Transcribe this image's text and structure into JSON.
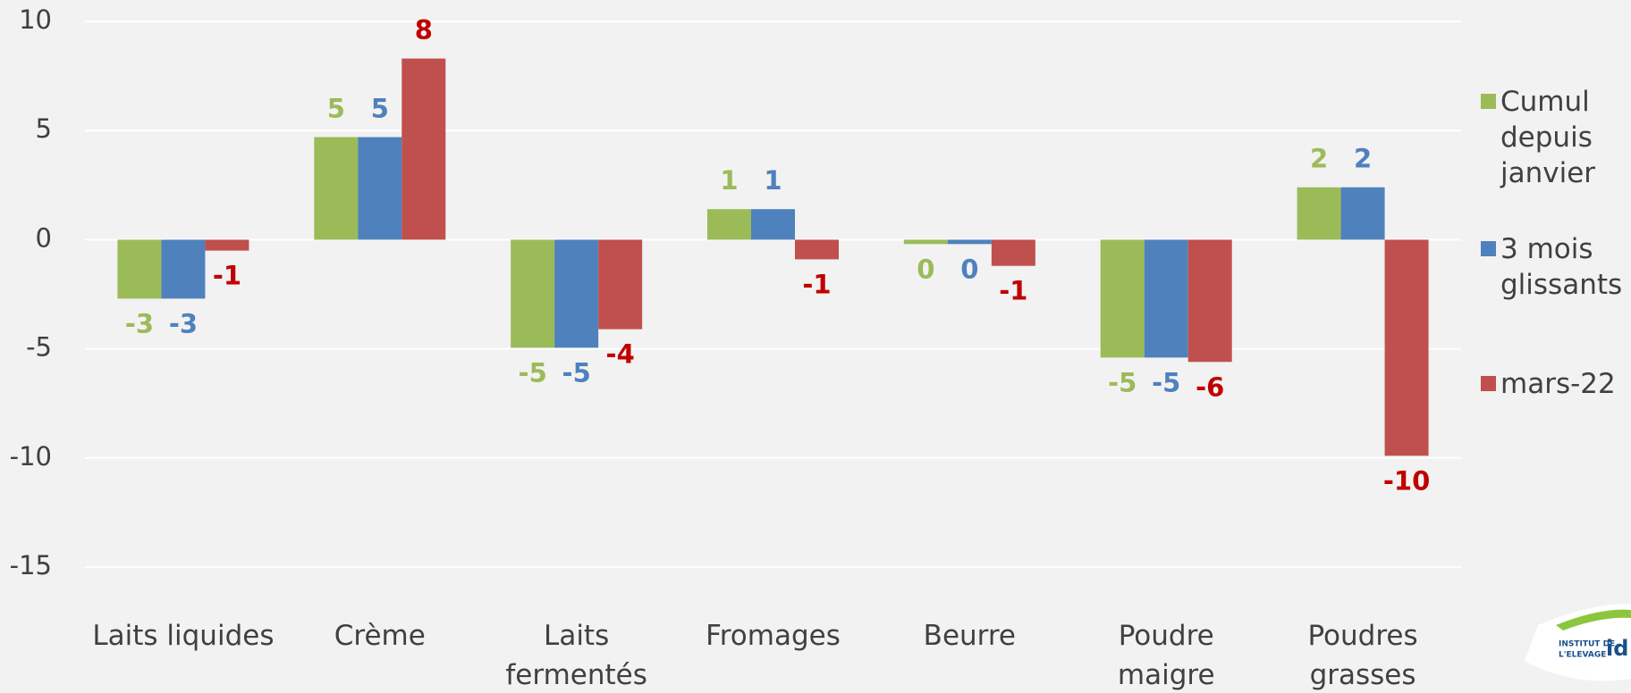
{
  "chart_data": {
    "type": "bar",
    "categories": [
      "Laits liquides",
      "Crème",
      "Laits\nfermentés",
      "Fromages",
      "Beurre",
      "Poudre\nmaigre",
      "Poudres\ngrasses"
    ],
    "series": [
      {
        "name": "Cumul\ndepuis\njanvier",
        "color": "#9bbb59",
        "label_color": "#9bbb59",
        "values": [
          -2.7,
          4.7,
          -4.95,
          1.4,
          -0.2,
          -5.4,
          2.4
        ],
        "value_labels": [
          "-3",
          "5",
          "-5",
          "1",
          "0",
          "-5",
          "2"
        ]
      },
      {
        "name": "3 mois\nglissants",
        "color": "#4f81bd",
        "label_color": "#4f81bd",
        "values": [
          -2.7,
          4.7,
          -4.95,
          1.4,
          -0.2,
          -5.4,
          2.4
        ],
        "value_labels": [
          "-3",
          "5",
          "-5",
          "1",
          "0",
          "-5",
          "2"
        ]
      },
      {
        "name": "mars-22",
        "color": "#c0504d",
        "label_color": "#c00000",
        "values": [
          -0.5,
          8.3,
          -4.1,
          -0.9,
          -1.2,
          -5.6,
          -9.9
        ],
        "value_labels": [
          "-1",
          "8",
          "-4",
          "-1",
          "-1",
          "-6",
          "-10"
        ]
      }
    ],
    "ylim": [
      -15,
      10
    ],
    "yticks": [
      -15,
      -10,
      -5,
      0,
      5,
      10
    ],
    "grid": true,
    "legend": "right",
    "logo": {
      "line1": "INSTITUT DE",
      "line2": "L'ELEVAGE",
      "brand": "id"
    }
  }
}
